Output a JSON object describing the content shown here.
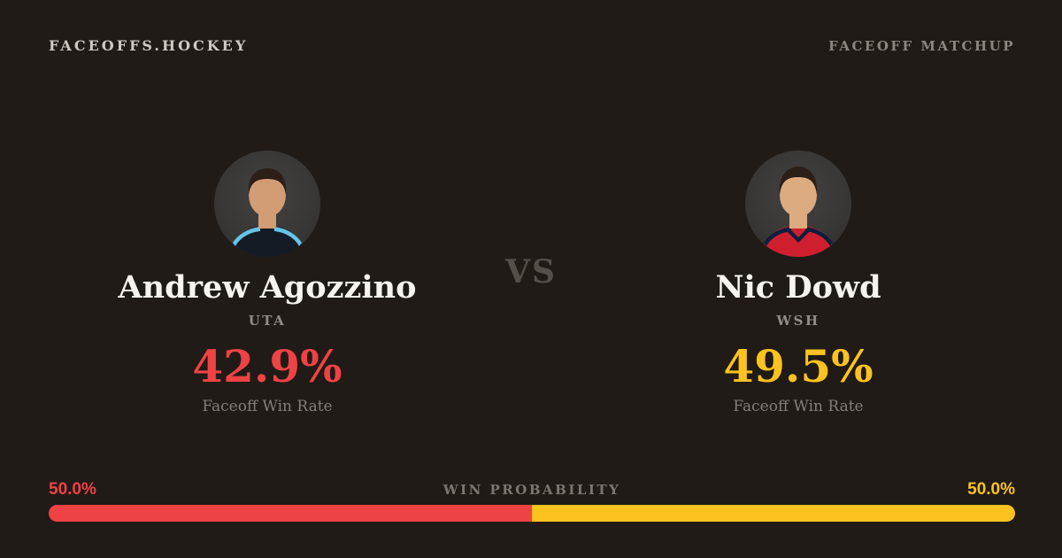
{
  "header": {
    "brand": "FACEOFFS.HOCKEY",
    "page_label": "FACEOFF MATCHUP"
  },
  "vs_label": "VS",
  "players": [
    {
      "name": "Andrew Agozzino",
      "team": "UTA",
      "faceoff_win_rate": "42.9%",
      "stat_label": "Faceoff Win Rate",
      "accent_color": "#ef4245",
      "avatar_icon": "player-headshot",
      "jersey_color": "#141b25",
      "jersey_trim_color": "#66c3e8",
      "skin_color": "#d29c74",
      "hair_color": "#2b1f17"
    },
    {
      "name": "Nic Dowd",
      "team": "WSH",
      "faceoff_win_rate": "49.5%",
      "stat_label": "Faceoff Win Rate",
      "accent_color": "#fcc21f",
      "avatar_icon": "player-headshot",
      "jersey_color": "#cf1f2e",
      "jersey_trim_color": "#0c1f3d",
      "skin_color": "#dcab80",
      "hair_color": "#2b1f17"
    }
  ],
  "win_probability": {
    "label": "WIN PROBABILITY",
    "left_value": "50.0%",
    "right_value": "50.0%",
    "left_percent": 50.0,
    "right_percent": 50.0
  },
  "colors": {
    "background": "#201b17",
    "red": "#ef4245",
    "gold": "#fcc21f",
    "text_primary": "#f7f4f0",
    "text_muted": "#8d8680",
    "avatar_background": "#3a3837"
  }
}
